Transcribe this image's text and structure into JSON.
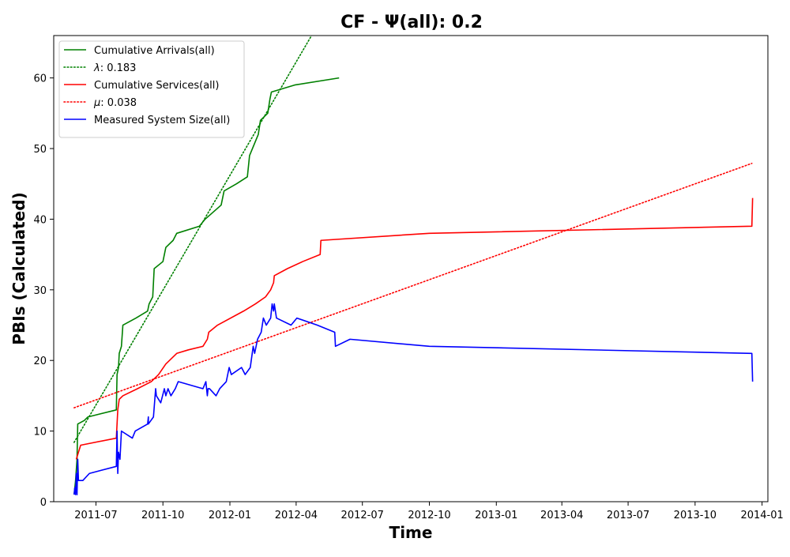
{
  "chart_data": {
    "type": "line",
    "title": "CF -  Ψ(all): 0.2",
    "xlabel": "Time",
    "ylabel": "PBIs (Calculated)",
    "xlim": [
      "2011-05-04",
      "2014-01-09"
    ],
    "ylim": [
      0,
      66
    ],
    "grid": false,
    "legend_position": "top-left",
    "x_ticks": [
      "2011-07-01",
      "2011-10-01",
      "2012-01-01",
      "2012-04-01",
      "2012-07-01",
      "2012-10-01",
      "2013-01-01",
      "2013-04-01",
      "2013-07-01",
      "2013-10-01",
      "2014-01-01"
    ],
    "x_tick_labels": [
      "2011-07",
      "2011-10",
      "2012-01",
      "2012-04",
      "2012-07",
      "2012-10",
      "2013-01",
      "2013-04",
      "2013-07",
      "2013-10",
      "2014-01"
    ],
    "y_ticks": [
      0,
      10,
      20,
      30,
      40,
      50,
      60
    ],
    "y_tick_labels": [
      "0",
      "10",
      "20",
      "30",
      "40",
      "50",
      "60"
    ],
    "series": [
      {
        "name": "Cumulative Arrivals(all)",
        "color": "#008000",
        "style": "solid",
        "points": [
          [
            "2011-06-01",
            1
          ],
          [
            "2011-06-03",
            3
          ],
          [
            "2011-06-05",
            6
          ],
          [
            "2011-06-06",
            11
          ],
          [
            "2011-06-15",
            11.5
          ],
          [
            "2011-06-20",
            12
          ],
          [
            "2011-07-29",
            13
          ],
          [
            "2011-07-30",
            18
          ],
          [
            "2011-08-01",
            19
          ],
          [
            "2011-08-02",
            21
          ],
          [
            "2011-08-05",
            22
          ],
          [
            "2011-08-07",
            25
          ],
          [
            "2011-08-25",
            26
          ],
          [
            "2011-09-10",
            27
          ],
          [
            "2011-09-12",
            28
          ],
          [
            "2011-09-17",
            29
          ],
          [
            "2011-09-19",
            33
          ],
          [
            "2011-10-01",
            34
          ],
          [
            "2011-10-05",
            36
          ],
          [
            "2011-10-15",
            37
          ],
          [
            "2011-10-20",
            38
          ],
          [
            "2011-11-20",
            39
          ],
          [
            "2011-11-28",
            40
          ],
          [
            "2011-12-20",
            42
          ],
          [
            "2011-12-24",
            44
          ],
          [
            "2012-01-10",
            45
          ],
          [
            "2012-01-25",
            46
          ],
          [
            "2012-01-28",
            49
          ],
          [
            "2012-02-05",
            51
          ],
          [
            "2012-02-09",
            52
          ],
          [
            "2012-02-12",
            54
          ],
          [
            "2012-02-22",
            55
          ],
          [
            "2012-02-25",
            57
          ],
          [
            "2012-02-27",
            58
          ],
          [
            "2012-03-30",
            59
          ],
          [
            "2012-05-30",
            60
          ]
        ]
      },
      {
        "name": "λ: 0.183",
        "label_symbol": "λ",
        "label_value": ": 0.183",
        "color": "#008000",
        "style": "dotted",
        "points": [
          [
            "2011-06-01",
            8.4
          ],
          [
            "2012-04-25",
            66.5
          ]
        ]
      },
      {
        "name": "Cumulative Services(all)",
        "color": "#ff0000",
        "style": "solid",
        "points": [
          [
            "2011-06-04",
            6
          ],
          [
            "2011-06-07",
            7
          ],
          [
            "2011-06-10",
            8
          ],
          [
            "2011-07-29",
            9
          ],
          [
            "2011-07-31",
            13
          ],
          [
            "2011-08-02",
            14.5
          ],
          [
            "2011-08-07",
            15
          ],
          [
            "2011-08-27",
            16
          ],
          [
            "2011-09-15",
            17
          ],
          [
            "2011-09-25",
            18
          ],
          [
            "2011-10-05",
            19.5
          ],
          [
            "2011-10-20",
            21
          ],
          [
            "2011-11-05",
            21.5
          ],
          [
            "2011-11-25",
            22
          ],
          [
            "2011-12-01",
            23
          ],
          [
            "2011-12-03",
            24
          ],
          [
            "2011-12-15",
            25
          ],
          [
            "2012-01-20",
            27
          ],
          [
            "2012-02-05",
            28
          ],
          [
            "2012-02-19",
            29
          ],
          [
            "2012-02-26",
            30
          ],
          [
            "2012-03-01",
            31
          ],
          [
            "2012-03-02",
            32
          ],
          [
            "2012-03-20",
            33
          ],
          [
            "2012-04-10",
            34
          ],
          [
            "2012-05-04",
            35
          ],
          [
            "2012-05-05",
            37
          ],
          [
            "2012-10-01",
            38
          ],
          [
            "2013-12-18",
            39
          ],
          [
            "2013-12-19",
            43
          ]
        ]
      },
      {
        "name": "μ: 0.038",
        "label_symbol": "μ",
        "label_value": ": 0.038",
        "color": "#ff0000",
        "style": "dotted",
        "points": [
          [
            "2011-06-01",
            13.3
          ],
          [
            "2013-12-18",
            47.9
          ]
        ]
      },
      {
        "name": "Measured System Size(all)",
        "color": "#0000ff",
        "style": "solid",
        "points": [
          [
            "2011-06-01",
            1
          ],
          [
            "2011-06-02",
            2
          ],
          [
            "2011-06-03",
            1
          ],
          [
            "2011-06-04",
            4
          ],
          [
            "2011-06-05",
            1
          ],
          [
            "2011-06-06",
            6
          ],
          [
            "2011-06-07",
            3
          ],
          [
            "2011-06-13",
            3
          ],
          [
            "2011-06-22",
            4
          ],
          [
            "2011-07-29",
            5
          ],
          [
            "2011-07-30",
            10
          ],
          [
            "2011-07-31",
            4
          ],
          [
            "2011-08-01",
            7
          ],
          [
            "2011-08-03",
            6
          ],
          [
            "2011-08-05",
            10
          ],
          [
            "2011-08-20",
            9
          ],
          [
            "2011-08-24",
            10
          ],
          [
            "2011-09-10",
            11
          ],
          [
            "2011-09-11",
            12
          ],
          [
            "2011-09-11",
            11
          ],
          [
            "2011-09-18",
            12
          ],
          [
            "2011-09-21",
            16
          ],
          [
            "2011-09-22",
            15
          ],
          [
            "2011-09-28",
            14
          ],
          [
            "2011-10-03",
            16
          ],
          [
            "2011-10-05",
            15
          ],
          [
            "2011-10-08",
            16
          ],
          [
            "2011-10-12",
            15
          ],
          [
            "2011-10-18",
            16
          ],
          [
            "2011-10-22",
            17
          ],
          [
            "2011-11-25",
            16
          ],
          [
            "2011-11-29",
            17
          ],
          [
            "2011-12-01",
            15
          ],
          [
            "2011-12-02",
            16
          ],
          [
            "2011-12-04",
            16
          ],
          [
            "2011-12-13",
            15
          ],
          [
            "2011-12-18",
            16
          ],
          [
            "2011-12-27",
            17
          ],
          [
            "2011-12-31",
            19
          ],
          [
            "2012-01-03",
            18
          ],
          [
            "2012-01-17",
            19
          ],
          [
            "2012-01-22",
            18
          ],
          [
            "2012-01-29",
            19
          ],
          [
            "2012-02-02",
            22
          ],
          [
            "2012-02-04",
            21
          ],
          [
            "2012-02-08",
            23
          ],
          [
            "2012-02-13",
            24
          ],
          [
            "2012-02-16",
            26
          ],
          [
            "2012-02-20",
            25
          ],
          [
            "2012-02-26",
            26
          ],
          [
            "2012-02-28",
            28
          ],
          [
            "2012-03-01",
            27
          ],
          [
            "2012-03-02",
            28
          ],
          [
            "2012-03-05",
            26
          ],
          [
            "2012-03-25",
            25
          ],
          [
            "2012-04-02",
            26
          ],
          [
            "2012-04-30",
            25
          ],
          [
            "2012-05-24",
            24
          ],
          [
            "2012-05-25",
            22
          ],
          [
            "2012-06-14",
            23
          ],
          [
            "2012-10-01",
            22
          ],
          [
            "2013-12-18",
            21
          ],
          [
            "2013-12-19",
            17
          ]
        ]
      }
    ]
  }
}
